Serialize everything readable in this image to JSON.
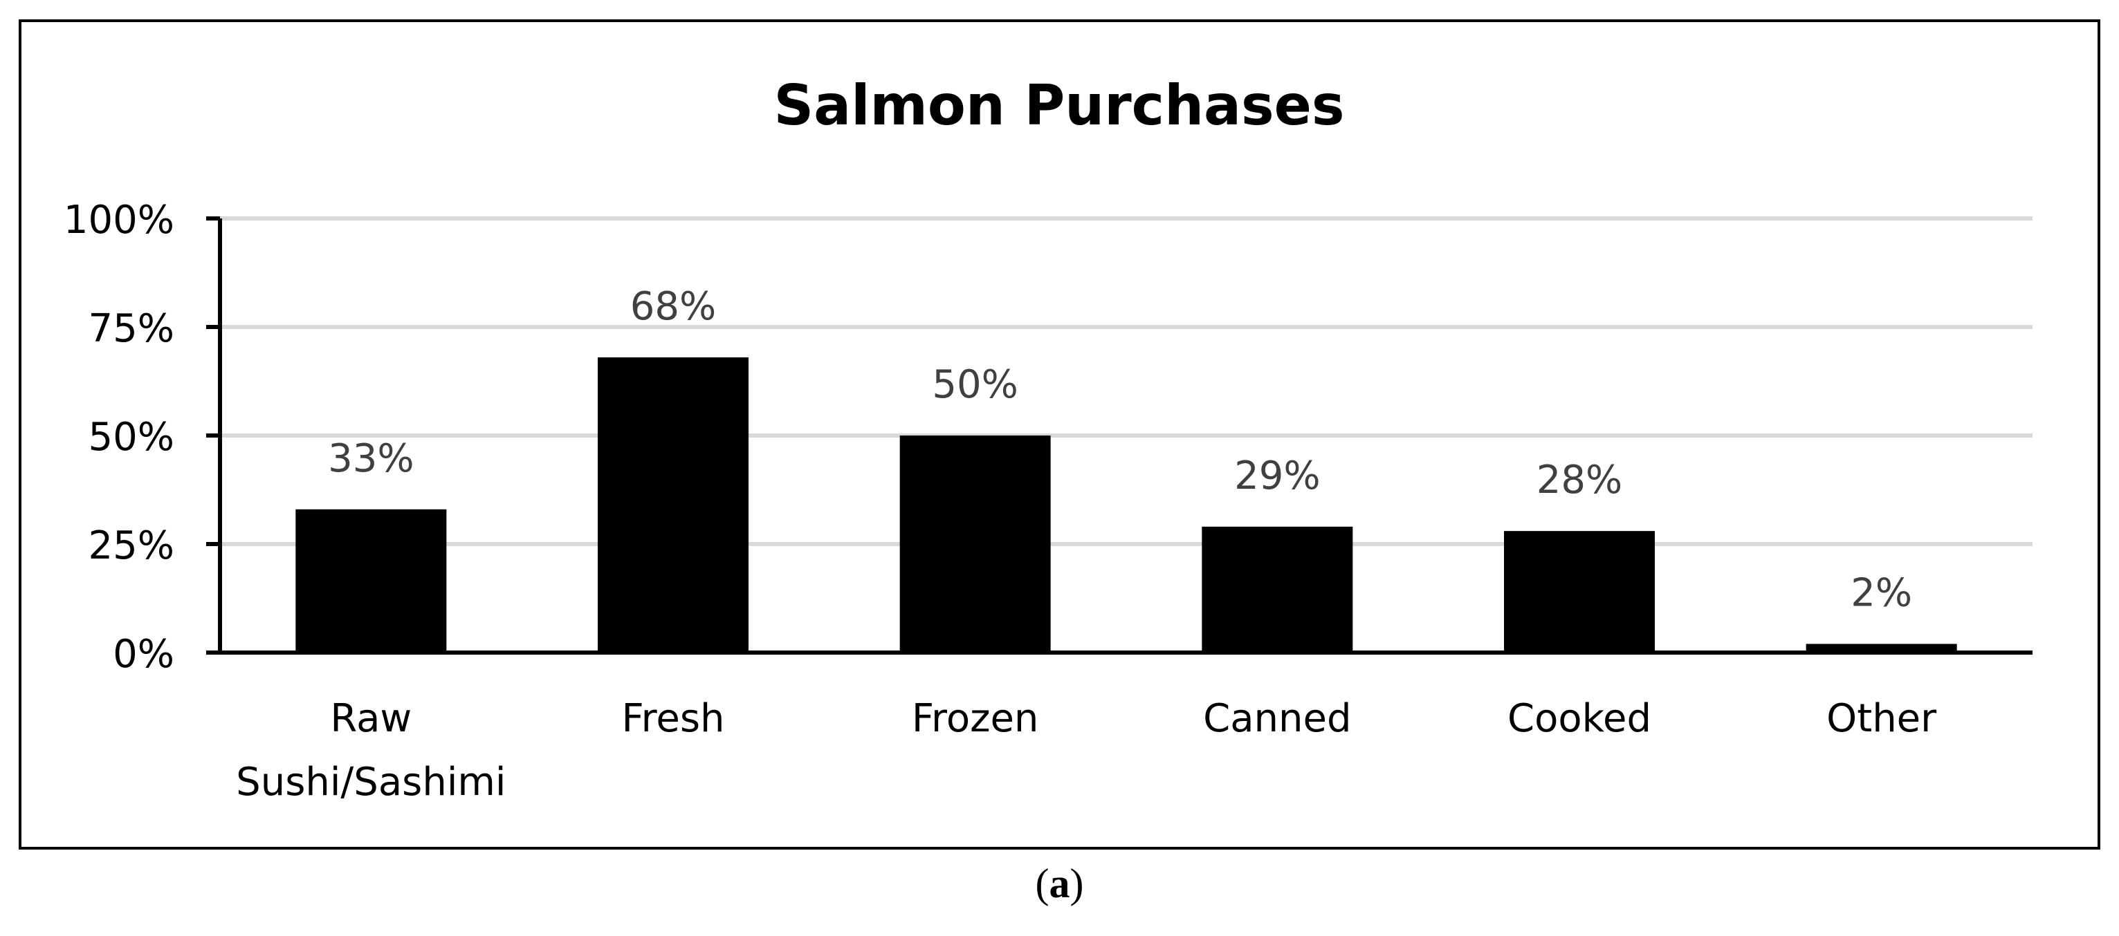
{
  "chart_data": {
    "type": "bar",
    "title": "Salmon Purchases",
    "categories": [
      [
        "Raw",
        "Sushi/Sashimi"
      ],
      [
        "Fresh"
      ],
      [
        "Frozen"
      ],
      [
        "Canned"
      ],
      [
        "Cooked"
      ],
      [
        "Other"
      ]
    ],
    "values": [
      33,
      68,
      50,
      29,
      28,
      2
    ],
    "data_labels": [
      "33%",
      "68%",
      "50%",
      "29%",
      "28%",
      "2%"
    ],
    "y_ticks": [
      0,
      25,
      50,
      75,
      100
    ],
    "y_tick_labels": [
      "0%",
      "25%",
      "50%",
      "75%",
      "100%"
    ],
    "ylim": [
      0,
      100
    ],
    "xlabel": "",
    "ylabel": "",
    "grid": true,
    "legend": "none",
    "colors": {
      "bar": "#000000",
      "grid": "#d9d9d9",
      "label": "#404040",
      "axis": "#000000"
    }
  },
  "panel_label": {
    "open": "(",
    "letter": "a",
    "close": ")"
  }
}
